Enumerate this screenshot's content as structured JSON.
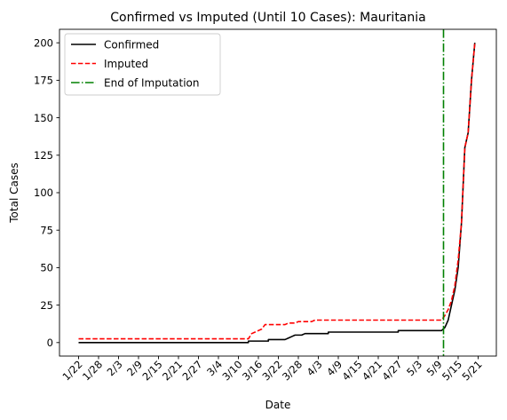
{
  "chart_data": {
    "type": "line",
    "title": "Confirmed vs Imputed (Until 10 Cases): Mauritania",
    "xlabel": "Date",
    "ylabel": "Total Cases",
    "ylim": [
      -9,
      209
    ],
    "yticks": [
      0,
      25,
      50,
      75,
      100,
      125,
      150,
      175,
      200
    ],
    "xticks": [
      {
        "day": 0,
        "label": "1/22"
      },
      {
        "day": 6,
        "label": "1/28"
      },
      {
        "day": 12,
        "label": "2/3"
      },
      {
        "day": 18,
        "label": "2/9"
      },
      {
        "day": 24,
        "label": "2/15"
      },
      {
        "day": 30,
        "label": "2/21"
      },
      {
        "day": 36,
        "label": "2/27"
      },
      {
        "day": 42,
        "label": "3/4"
      },
      {
        "day": 48,
        "label": "3/10"
      },
      {
        "day": 54,
        "label": "3/16"
      },
      {
        "day": 60,
        "label": "3/22"
      },
      {
        "day": 66,
        "label": "3/28"
      },
      {
        "day": 72,
        "label": "4/3"
      },
      {
        "day": 78,
        "label": "4/9"
      },
      {
        "day": 84,
        "label": "4/15"
      },
      {
        "day": 90,
        "label": "4/21"
      },
      {
        "day": 96,
        "label": "4/27"
      },
      {
        "day": 102,
        "label": "5/3"
      },
      {
        "day": 108,
        "label": "5/9"
      },
      {
        "day": 114,
        "label": "5/15"
      },
      {
        "day": 120,
        "label": "5/21"
      }
    ],
    "legend": "upper-left",
    "grid": false,
    "series": [
      {
        "name": "Confirmed",
        "color": "#000000",
        "dash": "solid",
        "points": [
          [
            0,
            0
          ],
          [
            51,
            0
          ],
          [
            51,
            1
          ],
          [
            57,
            1
          ],
          [
            57,
            2
          ],
          [
            62,
            2
          ],
          [
            63,
            3
          ],
          [
            64,
            4
          ],
          [
            65,
            5
          ],
          [
            67,
            5
          ],
          [
            68,
            6
          ],
          [
            75,
            6
          ],
          [
            75,
            7
          ],
          [
            96,
            7
          ],
          [
            96,
            8
          ],
          [
            109,
            8
          ],
          [
            110,
            10
          ],
          [
            111,
            15
          ],
          [
            112,
            25
          ],
          [
            113,
            35
          ],
          [
            114,
            50
          ],
          [
            115,
            80
          ],
          [
            116,
            130
          ],
          [
            117,
            140
          ],
          [
            118,
            175
          ],
          [
            119,
            200
          ]
        ]
      },
      {
        "name": "Imputed",
        "color": "#ff0000",
        "dash": "dashed",
        "points": [
          [
            0,
            2.5
          ],
          [
            51,
            2.5
          ],
          [
            52,
            6
          ],
          [
            54,
            8
          ],
          [
            55,
            9
          ],
          [
            56,
            12
          ],
          [
            62,
            12
          ],
          [
            63,
            13
          ],
          [
            65,
            13
          ],
          [
            66,
            14
          ],
          [
            70,
            14
          ],
          [
            71,
            15
          ],
          [
            109,
            15
          ],
          [
            110,
            18
          ],
          [
            111,
            22
          ],
          [
            112,
            28
          ],
          [
            113,
            38
          ],
          [
            114,
            55
          ],
          [
            115,
            80
          ],
          [
            116,
            130
          ],
          [
            117,
            140
          ],
          [
            118,
            175
          ],
          [
            119,
            200
          ]
        ]
      },
      {
        "name": "End of Imputation",
        "color": "#008000",
        "dash": "dashdot",
        "vertical_x": 109.6
      }
    ]
  }
}
